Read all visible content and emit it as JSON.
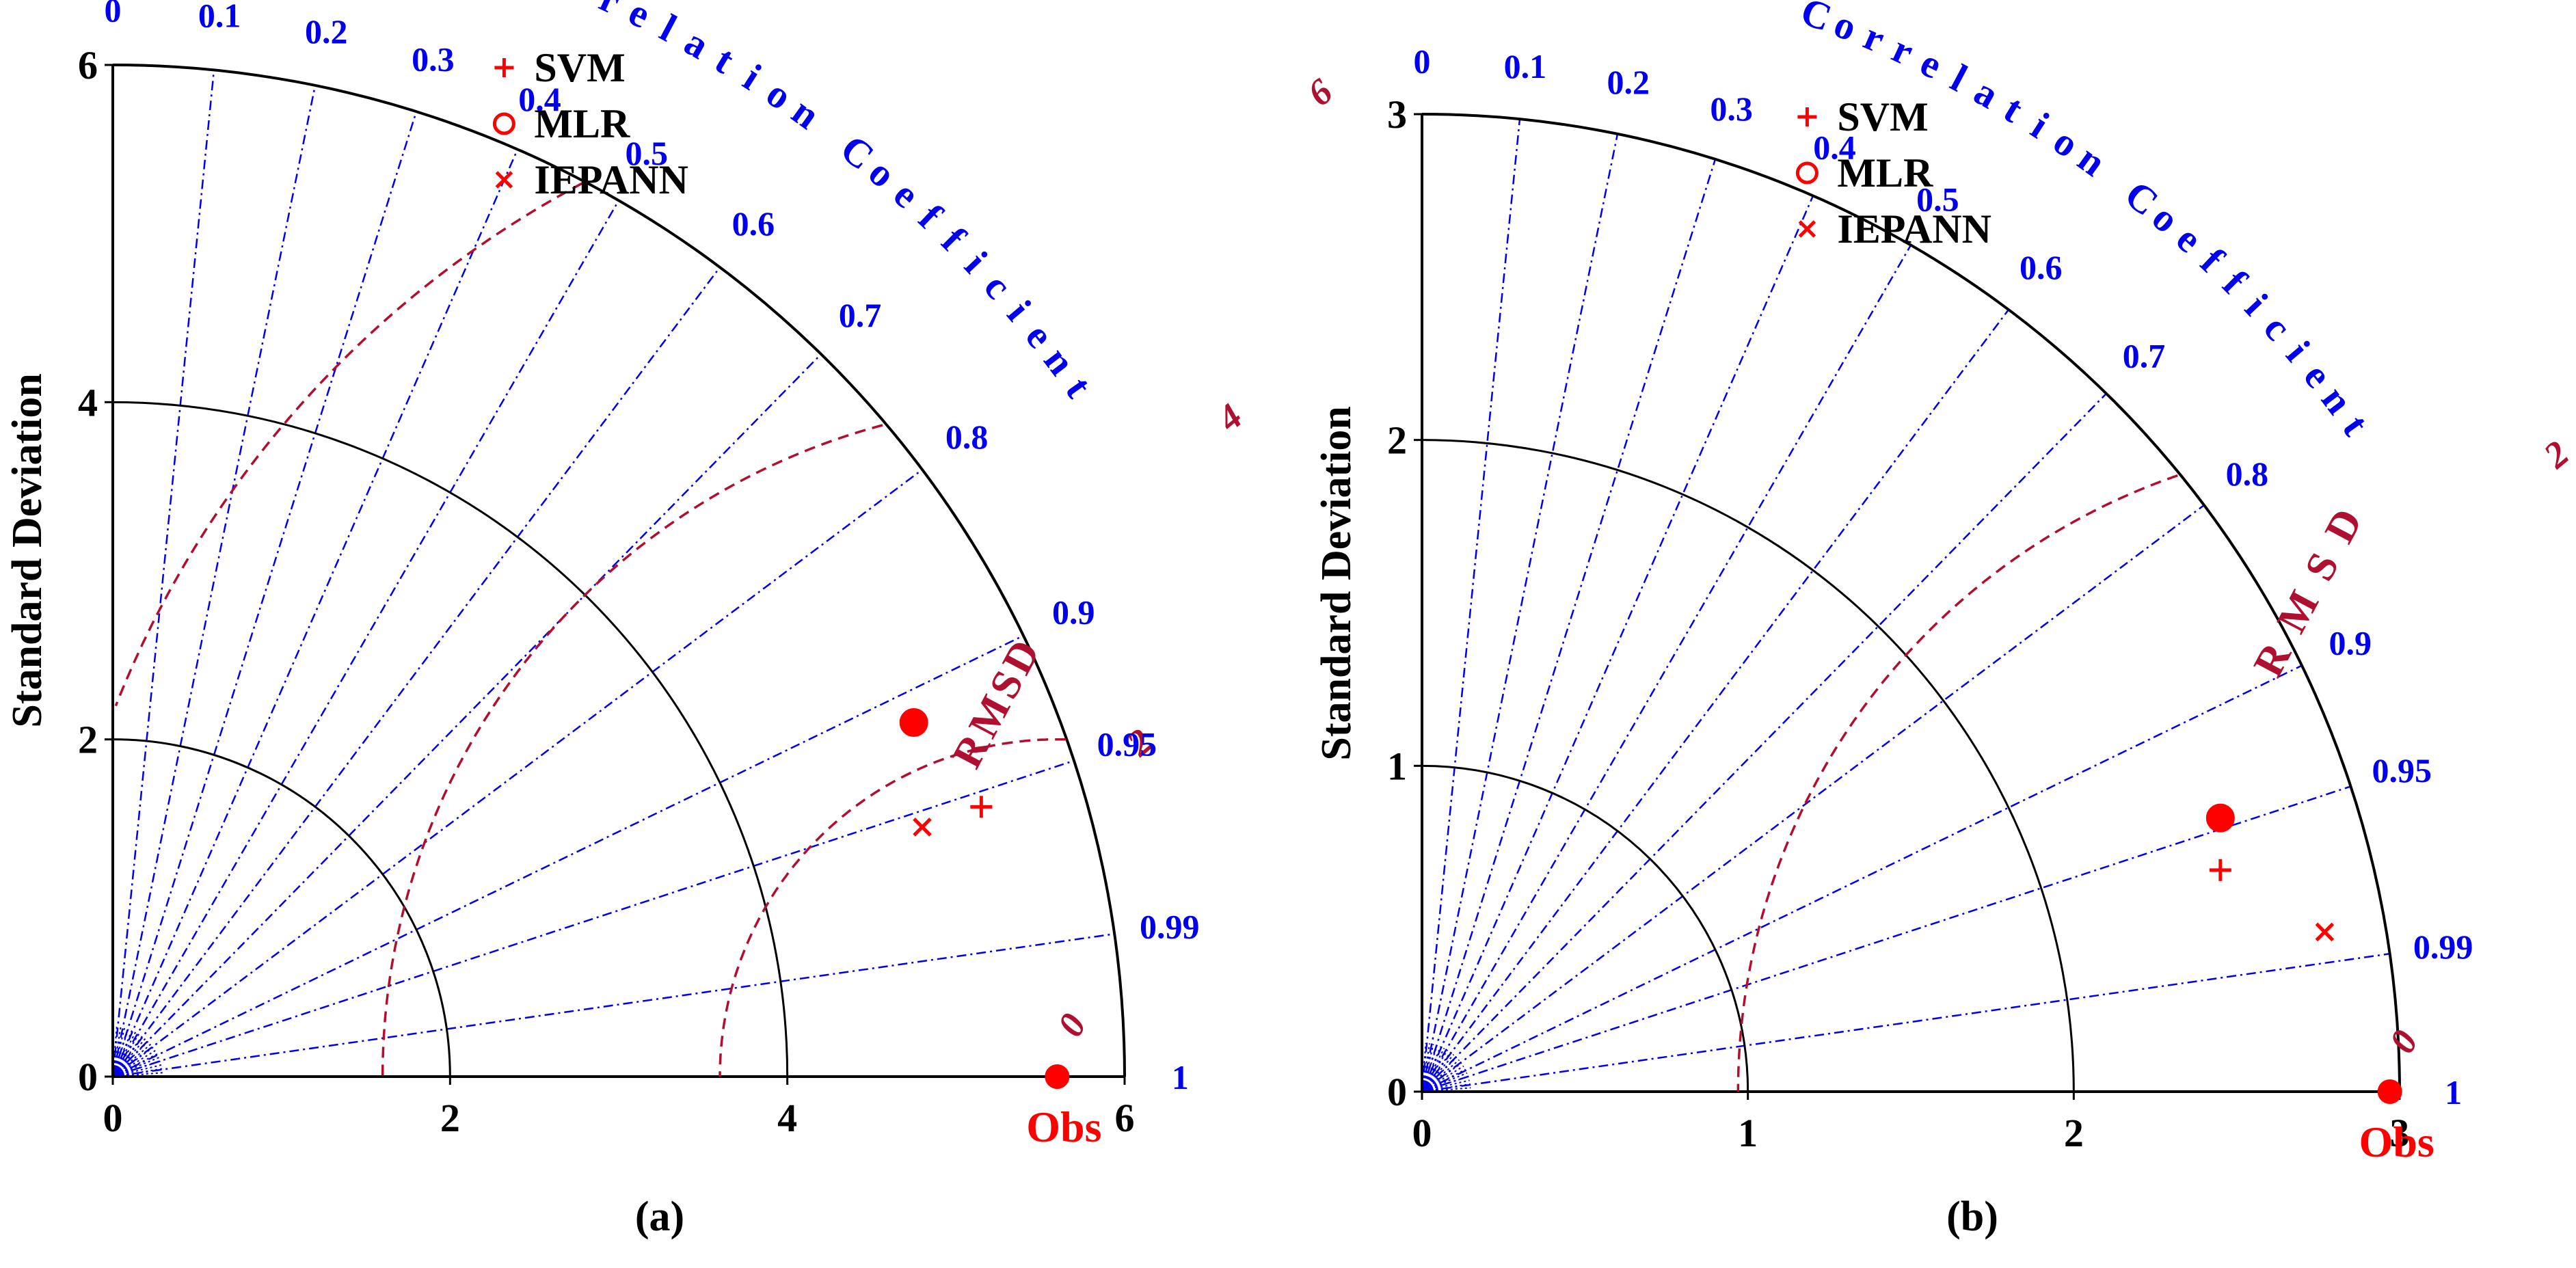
{
  "chart_data": [
    {
      "type": "taylor",
      "panel_label": "(a)",
      "ylabel": "Standard Deviation",
      "corr_label": "Correlation Coefficient",
      "rmsd_label": "RMSD",
      "obs_label": "Obs",
      "std_max": 6,
      "std_ticks": [
        "0",
        "2",
        "4",
        "6"
      ],
      "std_tick_values": [
        0,
        2,
        4,
        6
      ],
      "std_arcs": [
        2,
        4,
        6
      ],
      "corr_ticks": [
        "0",
        "0.1",
        "0.2",
        "0.3",
        "0.4",
        "0.5",
        "0.6",
        "0.7",
        "0.8",
        "0.9",
        "0.95",
        "0.99",
        "1"
      ],
      "corr_tick_values": [
        0,
        0.1,
        0.2,
        0.3,
        0.4,
        0.5,
        0.6,
        0.7,
        0.8,
        0.9,
        0.95,
        0.99,
        1
      ],
      "observed_std": 5.6,
      "rmsd_contours": [
        {
          "label": "0",
          "value": 0
        },
        {
          "label": "2",
          "value": 2
        },
        {
          "label": "4",
          "value": 4
        },
        {
          "label": "6",
          "value": 6
        }
      ],
      "legend": [
        {
          "symbol": "+",
          "name": "SVM"
        },
        {
          "symbol": "o",
          "name": "MLR"
        },
        {
          "symbol": "x",
          "name": "IEPANN"
        }
      ],
      "points": [
        {
          "model": "SVM",
          "marker": "plus",
          "x": 5.15,
          "y": 1.6
        },
        {
          "model": "MLR",
          "marker": "dot",
          "x": 4.75,
          "y": 2.1
        },
        {
          "model": "IEPANN",
          "marker": "cross",
          "x": 4.8,
          "y": 1.48
        },
        {
          "model": "Obs",
          "marker": "dot",
          "x": 5.6,
          "y": 0
        }
      ]
    },
    {
      "type": "taylor",
      "panel_label": "(b)",
      "ylabel": "Standard Deviation",
      "corr_label": "Correlation Coefficient",
      "rmsd_label": "RMSD",
      "obs_label": "Obs",
      "std_max": 3,
      "std_ticks": [
        "0",
        "1",
        "2",
        "3"
      ],
      "std_tick_values": [
        0,
        1,
        2,
        3
      ],
      "std_arcs": [
        1,
        2,
        3
      ],
      "corr_ticks": [
        "0",
        "0.1",
        "0.2",
        "0.3",
        "0.4",
        "0.5",
        "0.6",
        "0.7",
        "0.8",
        "0.9",
        "0.95",
        "0.99",
        "1"
      ],
      "corr_tick_values": [
        0,
        0.1,
        0.2,
        0.3,
        0.4,
        0.5,
        0.6,
        0.7,
        0.8,
        0.9,
        0.95,
        0.99,
        1
      ],
      "observed_std": 2.97,
      "rmsd_contours": [
        {
          "label": "0",
          "value": 0
        },
        {
          "label": "2",
          "value": 2
        }
      ],
      "legend": [
        {
          "symbol": "+",
          "name": "SVM"
        },
        {
          "symbol": "o",
          "name": "MLR"
        },
        {
          "symbol": "x",
          "name": "IEPANN"
        }
      ],
      "points": [
        {
          "model": "SVM",
          "marker": "plus",
          "x": 2.45,
          "y": 0.68
        },
        {
          "model": "MLR",
          "marker": "dot",
          "x": 2.45,
          "y": 0.84
        },
        {
          "model": "IEPANN",
          "marker": "cross",
          "x": 2.77,
          "y": 0.49
        },
        {
          "model": "Obs",
          "marker": "dot",
          "x": 2.97,
          "y": 0
        }
      ]
    }
  ]
}
